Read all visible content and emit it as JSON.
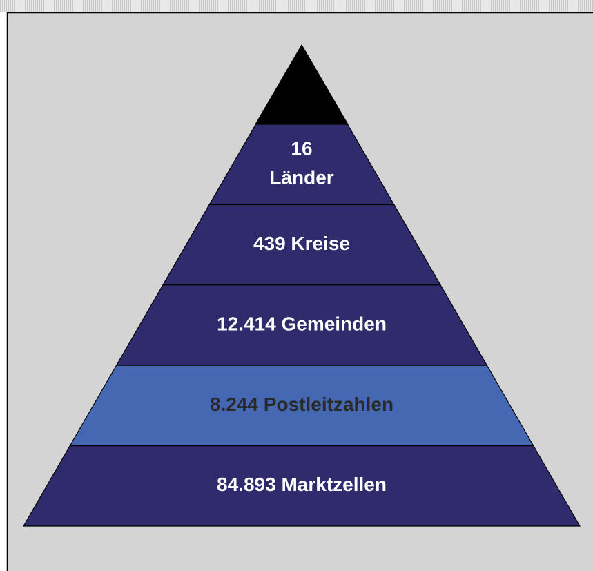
{
  "levels": [
    {
      "lines": [
        "16",
        "Länder"
      ],
      "color": "#2f2b6c",
      "text_color": "#ffffff"
    },
    {
      "lines": [
        "439 Kreise"
      ],
      "color": "#2f2b6c",
      "text_color": "#ffffff"
    },
    {
      "lines": [
        "12.414 Gemeinden"
      ],
      "color": "#2f2b6c",
      "text_color": "#ffffff"
    },
    {
      "lines": [
        "8.244 Postleitzahlen"
      ],
      "color": "#4667b1",
      "text_color": "#2a2a2a"
    },
    {
      "lines": [
        "84.893 Marktzellen"
      ],
      "color": "#2f2b6c",
      "text_color": "#ffffff"
    }
  ]
}
